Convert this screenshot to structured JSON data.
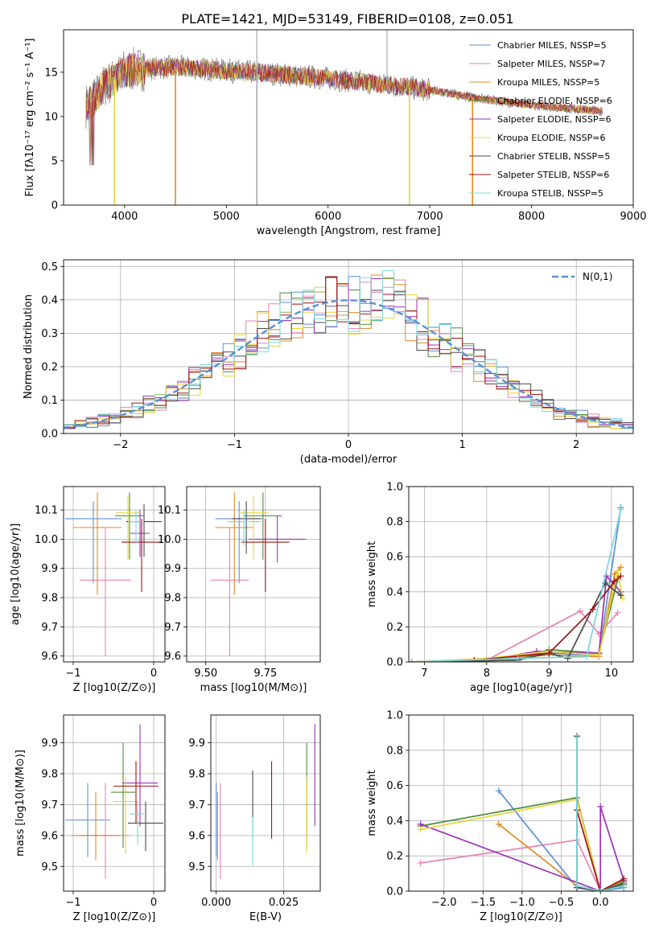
{
  "title": "PLATE=1421, MJD=53149, FIBERID=0108, z=0.051",
  "model_colors": [
    "#5b8fd8",
    "#e783b6",
    "#e08a22",
    "#4f8c3c",
    "#9a32b5",
    "#e8d63c",
    "#4a4a4a",
    "#a31212",
    "#7ad8dc"
  ],
  "chart_data": [
    {
      "id": "spectrum",
      "type": "line",
      "xlabel": "wavelength [Angstrom, rest frame]",
      "ylabel": "Flux [fλ10⁻¹⁷ erg cm⁻² s⁻¹ A⁻¹]",
      "xlim": [
        3400,
        9000
      ],
      "ylim": [
        0,
        19.8
      ],
      "xticks": [
        "4000",
        "5000",
        "6000",
        "7000",
        "8000",
        "9000"
      ],
      "yticks": [
        "0",
        "5",
        "10",
        "15"
      ],
      "legend": [
        "Chabrier MILES, NSSP=5",
        "Salpeter MILES, NSSP=7",
        "Kroupa MILES, NSSP=5",
        "Chabrier ELODIE, NSSP=6",
        "Salpeter ELODIE, NSSP=6",
        "Kroupa ELODIE, NSSP=6",
        "Chabrier STELIB, NSSP=5",
        "Salpeter STELIB, NSSP=6",
        "Kroupa STELIB, NSSP=5"
      ],
      "continuum": {
        "x": [
          3620,
          3700,
          3800,
          3900,
          4000,
          4200,
          4500,
          5000,
          5500,
          6000,
          6500,
          7000,
          7500,
          8000,
          8400,
          8700
        ],
        "y": [
          11.2,
          12.0,
          13.5,
          14.2,
          15.2,
          15.4,
          15.6,
          15.2,
          14.8,
          14.3,
          13.7,
          13.0,
          12.0,
          11.3,
          10.9,
          10.6
        ]
      },
      "drops": [
        {
          "x": 3900,
          "y": 0.0
        },
        {
          "x": 4500,
          "y": 0.0
        },
        {
          "x": 5300,
          "y": 0.0
        },
        {
          "x": 6800,
          "y": 0.0
        },
        {
          "x": 7420,
          "y": 0.0
        }
      ]
    },
    {
      "id": "residuals",
      "type": "histogram",
      "xlabel": "(data-model)/error",
      "ylabel": "Normed distribution",
      "xlim": [
        -2.5,
        2.5
      ],
      "ylim": [
        0,
        0.52
      ],
      "xticks": [
        "−2",
        "−1",
        "0",
        "1",
        "2"
      ],
      "yticks": [
        "0.0",
        "0.1",
        "0.2",
        "0.3",
        "0.4",
        "0.5"
      ],
      "legend": "N(0,1)"
    },
    {
      "id": "age_vs_Z",
      "type": "scatter",
      "xlabel": "Z [log10(Z/Z⊙)]",
      "ylabel": "age  [log10(age/yr)]",
      "xlim": [
        -1.12,
        0.14
      ],
      "ylim": [
        9.58,
        10.18
      ],
      "xticks": [
        "−1",
        "0"
      ],
      "yticks": [
        "9.6",
        "9.7",
        "9.8",
        "9.9",
        "10.0",
        "10.1"
      ],
      "points": [
        {
          "x": -0.75,
          "y": 10.07,
          "xerr": 0.35,
          "yerr": [
            0.22,
            0.06
          ]
        },
        {
          "x": -0.6,
          "y": 9.86,
          "xerr": 0.32,
          "yerr": [
            0.26,
            0.18
          ]
        },
        {
          "x": -0.7,
          "y": 10.04,
          "xerr": 0.3,
          "yerr": [
            0.23,
            0.12
          ]
        },
        {
          "x": -0.3,
          "y": 10.08,
          "xerr": 0.18,
          "yerr": [
            0.15,
            0.08
          ]
        },
        {
          "x": -0.17,
          "y": 10.02,
          "xerr": 0.12,
          "yerr": [
            0.08,
            0.08
          ]
        },
        {
          "x": -0.32,
          "y": 10.09,
          "xerr": 0.15,
          "yerr": [
            0.16,
            0.06
          ]
        },
        {
          "x": -0.12,
          "y": 10.06,
          "xerr": 0.22,
          "yerr": [
            0.12,
            0.06
          ]
        },
        {
          "x": -0.15,
          "y": 9.99,
          "xerr": 0.25,
          "yerr": [
            0.17,
            0.08
          ]
        },
        {
          "x": -0.22,
          "y": 10.06,
          "xerr": 0.1,
          "yerr": [
            0.08,
            0.04
          ]
        }
      ]
    },
    {
      "id": "age_vs_mass",
      "type": "scatter",
      "xlabel": "mass [log10(M/M⊙)]",
      "ylabel": "",
      "xlim": [
        9.42,
        9.98
      ],
      "ylim": [
        9.58,
        10.18
      ],
      "xticks": [
        "9.50",
        "9.75"
      ],
      "yticks": [
        "9.6",
        "9.7",
        "9.8",
        "9.9",
        "10.0",
        "10.1"
      ],
      "points": [
        {
          "x": 9.64,
          "y": 10.07,
          "xerr": 0.1,
          "yerr": [
            0.22,
            0.06
          ]
        },
        {
          "x": 9.6,
          "y": 9.86,
          "xerr": 0.08,
          "yerr": [
            0.26,
            0.18
          ]
        },
        {
          "x": 9.62,
          "y": 10.04,
          "xerr": 0.08,
          "yerr": [
            0.23,
            0.12
          ]
        },
        {
          "x": 9.74,
          "y": 10.08,
          "xerr": 0.08,
          "yerr": [
            0.15,
            0.08
          ]
        },
        {
          "x": 9.8,
          "y": 10.0,
          "xerr": 0.12,
          "yerr": [
            0.08,
            0.08
          ]
        },
        {
          "x": 9.7,
          "y": 10.09,
          "xerr": 0.06,
          "yerr": [
            0.16,
            0.06
          ]
        },
        {
          "x": 9.67,
          "y": 10.07,
          "xerr": 0.06,
          "yerr": [
            0.12,
            0.06
          ]
        },
        {
          "x": 9.75,
          "y": 9.99,
          "xerr": 0.1,
          "yerr": [
            0.17,
            0.08
          ]
        },
        {
          "x": 9.66,
          "y": 10.06,
          "xerr": 0.07,
          "yerr": [
            0.08,
            0.04
          ]
        }
      ]
    },
    {
      "id": "weight_vs_age",
      "type": "line",
      "xlabel": "age  [log10(age/yr)]",
      "ylabel": "mass weight",
      "xlim": [
        6.75,
        10.35
      ],
      "ylim": [
        0,
        1.0
      ],
      "xticks": [
        "7",
        "8",
        "9",
        "10"
      ],
      "yticks": [
        "0.0",
        "0.2",
        "0.4",
        "0.6",
        "0.8",
        "1.0"
      ],
      "series": [
        {
          "x": [
            6.8,
            8.5,
            9.0,
            9.8,
            10.15
          ],
          "y": [
            0.0,
            0.02,
            0.05,
            0.04,
            0.88
          ]
        },
        {
          "x": [
            6.8,
            8.0,
            9.5,
            9.8,
            10.1
          ],
          "y": [
            0.0,
            0.01,
            0.29,
            0.16,
            0.28
          ]
        },
        {
          "x": [
            6.8,
            8.0,
            9.0,
            9.8,
            10.05,
            10.15
          ],
          "y": [
            0.0,
            0.01,
            0.04,
            0.03,
            0.5,
            0.54
          ]
        },
        {
          "x": [
            6.8,
            8.5,
            9.0,
            9.8,
            10.1
          ],
          "y": [
            0.0,
            0.01,
            0.07,
            0.05,
            0.47
          ]
        },
        {
          "x": [
            6.8,
            8.0,
            8.8,
            9.8,
            9.92,
            10.15
          ],
          "y": [
            0.0,
            0.01,
            0.06,
            0.05,
            0.49,
            0.4
          ]
        },
        {
          "x": [
            6.8,
            8.0,
            9.0,
            9.8,
            10.1,
            10.18
          ],
          "y": [
            0.0,
            0.02,
            0.06,
            0.04,
            0.52,
            0.36
          ]
        },
        {
          "x": [
            6.8,
            8.5,
            9.0,
            9.3,
            9.9,
            10.15
          ],
          "y": [
            0.0,
            0.01,
            0.05,
            0.02,
            0.45,
            0.38
          ]
        },
        {
          "x": [
            6.8,
            7.8,
            9.0,
            9.7,
            10.05,
            10.15
          ],
          "y": [
            0.0,
            0.01,
            0.05,
            0.3,
            0.46,
            0.49
          ]
        },
        {
          "x": [
            6.8,
            8.5,
            9.6,
            10.15
          ],
          "y": [
            0.0,
            0.02,
            0.03,
            0.87
          ]
        }
      ]
    },
    {
      "id": "mass_vs_Z",
      "type": "scatter",
      "xlabel": "Z [log10(Z/Z⊙)]",
      "ylabel": "mass [log10(M/M⊙)]",
      "xlim": [
        -1.12,
        0.14
      ],
      "ylim": [
        9.42,
        9.99
      ],
      "xticks": [
        "−1",
        "0"
      ],
      "yticks": [
        "9.5",
        "9.6",
        "9.7",
        "9.8",
        "9.9"
      ],
      "points": [
        {
          "x": -0.82,
          "y": 9.65,
          "xerr": 0.28,
          "yerr": [
            0.12,
            0.12
          ]
        },
        {
          "x": -0.6,
          "y": 9.6,
          "xerr": 0.32,
          "yerr": [
            0.14,
            0.17
          ]
        },
        {
          "x": -0.72,
          "y": 9.6,
          "xerr": 0.3,
          "yerr": [
            0.08,
            0.14
          ]
        },
        {
          "x": -0.38,
          "y": 9.74,
          "xerr": 0.15,
          "yerr": [
            0.18,
            0.16
          ]
        },
        {
          "x": -0.17,
          "y": 9.77,
          "xerr": 0.22,
          "yerr": [
            0.14,
            0.19
          ]
        },
        {
          "x": -0.35,
          "y": 9.71,
          "xerr": 0.15,
          "yerr": [
            0.17,
            0.08
          ]
        },
        {
          "x": -0.1,
          "y": 9.64,
          "xerr": 0.22,
          "yerr": [
            0.09,
            0.07
          ]
        },
        {
          "x": -0.22,
          "y": 9.76,
          "xerr": 0.28,
          "yerr": [
            0.12,
            0.08
          ]
        },
        {
          "x": -0.2,
          "y": 9.67,
          "xerr": 0.1,
          "yerr": [
            0.1,
            0.04
          ]
        }
      ]
    },
    {
      "id": "mass_vs_ebv",
      "type": "scatter",
      "xlabel": "E(B-V)",
      "ylabel": "",
      "xlim": [
        -0.002,
        0.0385
      ],
      "ylim": [
        9.42,
        9.99
      ],
      "xticks": [
        "0.000",
        "0.025"
      ],
      "yticks": [
        "9.5",
        "9.6",
        "9.7",
        "9.8",
        "9.9"
      ],
      "points": [
        {
          "x": 0.0,
          "y": 9.65,
          "yerr": [
            0.12,
            0.12
          ]
        },
        {
          "x": 0.0015,
          "y": 9.6,
          "yerr": [
            0.14,
            0.17
          ]
        },
        {
          "x": 0.0005,
          "y": 9.6,
          "yerr": [
            0.08,
            0.14
          ]
        },
        {
          "x": 0.0335,
          "y": 9.74,
          "yerr": [
            0.18,
            0.16
          ]
        },
        {
          "x": 0.0365,
          "y": 9.77,
          "yerr": [
            0.14,
            0.19
          ]
        },
        {
          "x": 0.0335,
          "y": 9.71,
          "yerr": [
            0.17,
            0.08
          ]
        },
        {
          "x": 0.0135,
          "y": 9.67,
          "yerr": [
            0.09,
            0.14
          ]
        },
        {
          "x": 0.0205,
          "y": 9.71,
          "yerr": [
            0.12,
            0.13
          ]
        },
        {
          "x": 0.0135,
          "y": 9.62,
          "yerr": [
            0.12,
            0.04
          ]
        }
      ]
    },
    {
      "id": "weight_vs_Z",
      "type": "line",
      "xlabel": "Z [log10(Z/Z⊙)]",
      "ylabel": "mass weight",
      "xlim": [
        -2.45,
        0.42
      ],
      "ylim": [
        0,
        1.0
      ],
      "xticks": [
        "−2.0",
        "−1.5",
        "−1.0",
        "−0.5",
        "0.0"
      ],
      "yticks": [
        "0.0",
        "0.2",
        "0.4",
        "0.6",
        "0.8",
        "1.0"
      ],
      "series": [
        {
          "x": [
            -1.3,
            -0.3,
            0.0,
            0.3
          ],
          "y": [
            0.57,
            0.02,
            0.0,
            0.02
          ]
        },
        {
          "x": [
            -2.3,
            -0.3,
            0.0,
            0.3
          ],
          "y": [
            0.16,
            0.29,
            0.0,
            0.03
          ]
        },
        {
          "x": [
            -1.3,
            -0.3,
            0.0,
            0.3
          ],
          "y": [
            0.38,
            0.03,
            0.0,
            0.06
          ]
        },
        {
          "x": [
            -2.3,
            -0.3,
            0.0,
            0.3
          ],
          "y": [
            0.37,
            0.53,
            0.0,
            0.05
          ]
        },
        {
          "x": [
            -2.3,
            0.0,
            0.0,
            0.3
          ],
          "y": [
            0.38,
            0.0,
            0.48,
            0.06
          ]
        },
        {
          "x": [
            -2.3,
            -0.3,
            0.0,
            0.3
          ],
          "y": [
            0.35,
            0.52,
            0.0,
            0.04
          ]
        },
        {
          "x": [
            -0.3,
            -0.3,
            0.0,
            0.3
          ],
          "y": [
            0.88,
            0.02,
            0.0,
            0.04
          ]
        },
        {
          "x": [
            -0.3,
            0.0,
            0.3
          ],
          "y": [
            0.46,
            0.0,
            0.07
          ]
        },
        {
          "x": [
            -0.3,
            -0.3,
            0.0,
            0.3
          ],
          "y": [
            0.87,
            0.03,
            0.0,
            0.03
          ]
        }
      ]
    }
  ]
}
